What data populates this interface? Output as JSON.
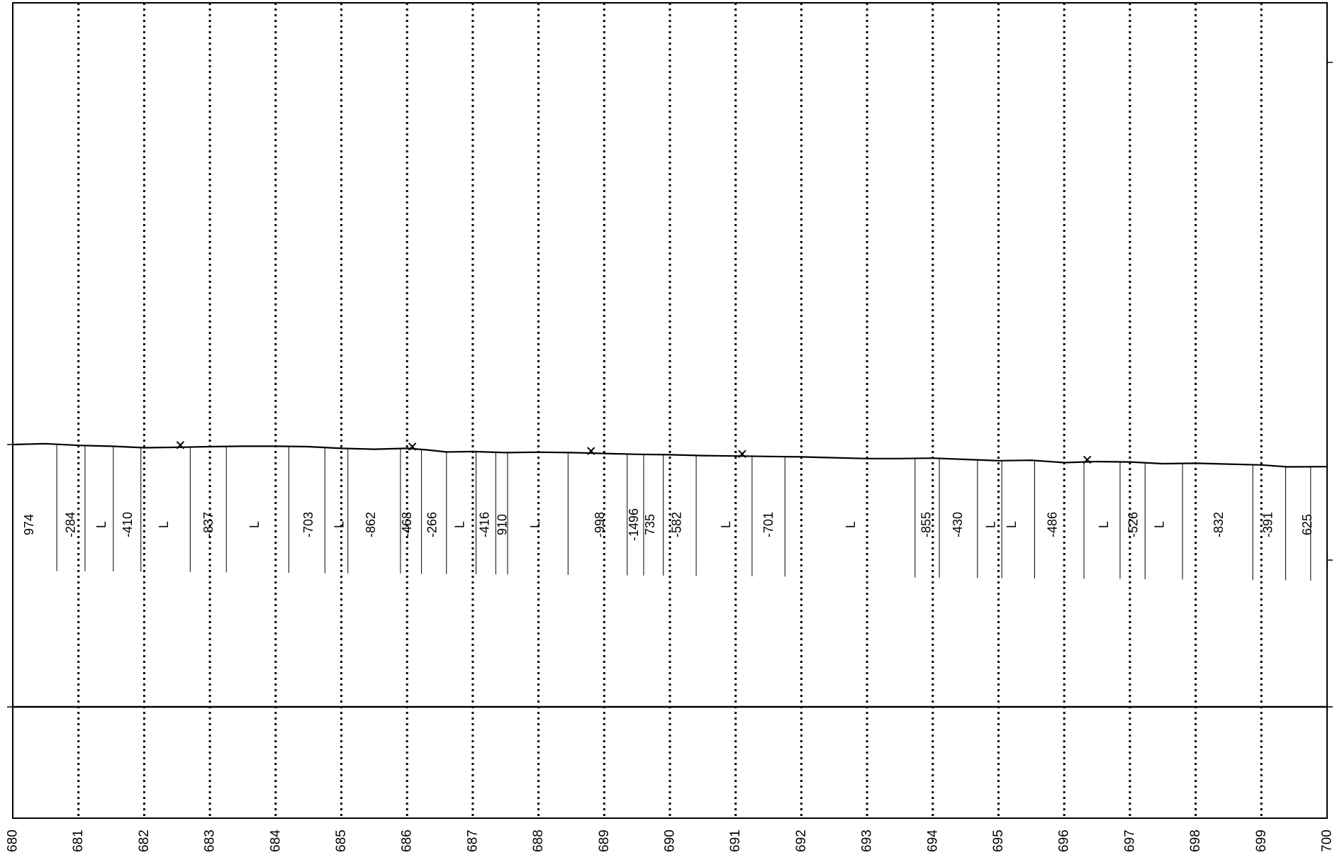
{
  "chart_data": {
    "type": "line",
    "title": "",
    "xlabel": "",
    "ylabel": "",
    "xlim": [
      680,
      700
    ],
    "x_ticks": [
      "680",
      "681",
      "682",
      "683",
      "684",
      "685",
      "686",
      "687",
      "688",
      "689",
      "690",
      "691",
      "692",
      "693",
      "694",
      "695",
      "696",
      "697",
      "698",
      "699",
      "700"
    ],
    "grid": "vertical dotted lines at every integer km",
    "profile": [
      [
        680.0,
        0.0
      ],
      [
        680.5,
        0.04
      ],
      [
        681.0,
        -0.04
      ],
      [
        681.5,
        -0.08
      ],
      [
        682.0,
        -0.15
      ],
      [
        682.5,
        -0.13
      ],
      [
        683.0,
        -0.1
      ],
      [
        683.5,
        -0.08
      ],
      [
        684.0,
        -0.08
      ],
      [
        684.5,
        -0.1
      ],
      [
        685.0,
        -0.18
      ],
      [
        685.5,
        -0.22
      ],
      [
        686.0,
        -0.18
      ],
      [
        686.3,
        -0.25
      ],
      [
        686.6,
        -0.35
      ],
      [
        687.0,
        -0.33
      ],
      [
        687.5,
        -0.38
      ],
      [
        688.0,
        -0.36
      ],
      [
        688.5,
        -0.38
      ],
      [
        689.0,
        -0.42
      ],
      [
        689.5,
        -0.46
      ],
      [
        690.0,
        -0.48
      ],
      [
        690.5,
        -0.52
      ],
      [
        691.0,
        -0.54
      ],
      [
        691.5,
        -0.56
      ],
      [
        692.0,
        -0.58
      ],
      [
        692.5,
        -0.62
      ],
      [
        693.0,
        -0.66
      ],
      [
        693.5,
        -0.66
      ],
      [
        694.0,
        -0.64
      ],
      [
        694.5,
        -0.7
      ],
      [
        695.0,
        -0.76
      ],
      [
        695.5,
        -0.74
      ],
      [
        696.0,
        -0.85
      ],
      [
        696.5,
        -0.8
      ],
      [
        697.0,
        -0.82
      ],
      [
        697.5,
        -0.9
      ],
      [
        698.0,
        -0.88
      ],
      [
        698.5,
        -0.92
      ],
      [
        699.0,
        -0.96
      ],
      [
        699.4,
        -1.05
      ],
      [
        700.0,
        -1.04
      ]
    ],
    "markers_x": [
      682.55,
      686.08,
      688.8,
      691.1,
      696.35
    ],
    "segments": [
      {
        "x": 680.25,
        "label": "974"
      },
      {
        "x": 680.88,
        "label": "-284"
      },
      {
        "x": 681.35,
        "label": "L"
      },
      {
        "x": 681.75,
        "label": "-410"
      },
      {
        "x": 682.3,
        "label": "L"
      },
      {
        "x": 682.98,
        "label": "-837"
      },
      {
        "x": 683.68,
        "label": "L"
      },
      {
        "x": 684.5,
        "label": "-703"
      },
      {
        "x": 684.97,
        "label": "L"
      },
      {
        "x": 685.45,
        "label": "-862"
      },
      {
        "x": 686.0,
        "label": "-468"
      },
      {
        "x": 686.38,
        "label": "-266"
      },
      {
        "x": 686.8,
        "label": "L"
      },
      {
        "x": 687.18,
        "label": "-416"
      },
      {
        "x": 687.45,
        "label": "910"
      },
      {
        "x": 687.95,
        "label": "L"
      },
      {
        "x": 688.93,
        "label": "-998"
      },
      {
        "x": 689.45,
        "label": "-1496"
      },
      {
        "x": 689.7,
        "label": "735"
      },
      {
        "x": 690.1,
        "label": "-582"
      },
      {
        "x": 690.85,
        "label": "L"
      },
      {
        "x": 691.5,
        "label": "-701"
      },
      {
        "x": 692.75,
        "label": "L"
      },
      {
        "x": 693.9,
        "label": "-855"
      },
      {
        "x": 694.38,
        "label": "-430"
      },
      {
        "x": 694.88,
        "label": "L"
      },
      {
        "x": 695.2,
        "label": "L"
      },
      {
        "x": 695.82,
        "label": "-486"
      },
      {
        "x": 696.6,
        "label": "L"
      },
      {
        "x": 697.05,
        "label": "-526"
      },
      {
        "x": 697.45,
        "label": "L"
      },
      {
        "x": 698.35,
        "label": "-832"
      },
      {
        "x": 699.1,
        "label": "-391"
      },
      {
        "x": 699.7,
        "label": "625"
      }
    ],
    "segment_boundaries_x": [
      680.67,
      681.1,
      681.53,
      681.95,
      682.7,
      683.25,
      684.2,
      684.75,
      685.1,
      685.9,
      686.22,
      686.6,
      687.05,
      687.35,
      687.53,
      688.45,
      689.35,
      689.6,
      689.9,
      690.4,
      691.25,
      691.75,
      693.73,
      694.1,
      694.68,
      695.05,
      695.55,
      696.3,
      696.85,
      697.23,
      697.8,
      698.87,
      699.37,
      699.75
    ]
  }
}
